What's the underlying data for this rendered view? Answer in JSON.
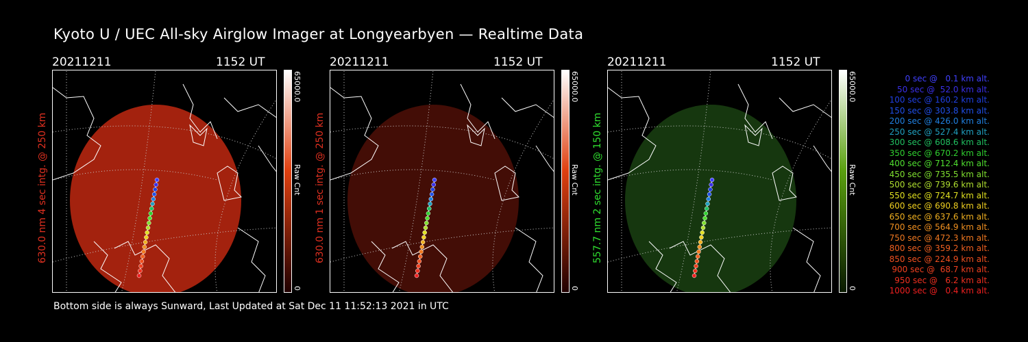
{
  "page": {
    "title": "Kyoto U / UEC All-sky Airglow Imager at Longyearbyen — Realtime Data",
    "footer": "Bottom side is always Sunward, Last Updated at Sat Dec 11 11:52:13 2021 in UTC"
  },
  "panels": [
    {
      "date": "20211211",
      "time": "1152 UT",
      "ylabel": "630.0 nm 4 sec intg. @ 250 km",
      "color": "#e03020",
      "glow": "#c02810",
      "glow_opacity": 0.85,
      "cbar_max": "65000.0",
      "cbar_unit": "Raw Cnt",
      "cbar_min": "0",
      "cbar_top": "#ffffff",
      "cbar_mid": "#e04010",
      "cbar_bot": "#200000"
    },
    {
      "date": "20211211",
      "time": "1152 UT",
      "ylabel": "630.0 nm 1 sec intg. @ 250 km",
      "color": "#e03020",
      "glow": "#5a1208",
      "glow_opacity": 0.75,
      "cbar_max": "65000.0",
      "cbar_unit": "Raw Cnt",
      "cbar_min": "0",
      "cbar_top": "#ffffff",
      "cbar_mid": "#e04010",
      "cbar_bot": "#200000"
    },
    {
      "date": "20211211",
      "time": "1152 UT",
      "ylabel": "557.7 nm 2 sec intg. @ 150 km",
      "color": "#30e030",
      "glow": "#1e4a14",
      "glow_opacity": 0.75,
      "cbar_max": "65000.0",
      "cbar_unit": "Raw Cnt",
      "cbar_min": "0",
      "cbar_top": "#ffffff",
      "cbar_mid": "#5aa010",
      "cbar_bot": "#0a1a00"
    }
  ],
  "legend": [
    {
      "text": " 0 sec @   0.1 km alt.",
      "color": "#4040ff"
    },
    {
      "text": "50 sec @  52.0 km alt.",
      "color": "#3a30e8"
    },
    {
      "text": "100 sec @ 160.2 km alt.",
      "color": "#2040e0"
    },
    {
      "text": "150 sec @ 303.8 km alt.",
      "color": "#2050e8"
    },
    {
      "text": "200 sec @ 426.0 km alt.",
      "color": "#2080e0"
    },
    {
      "text": "250 sec @ 527.4 km alt.",
      "color": "#20a0c0"
    },
    {
      "text": "300 sec @ 608.6 km alt.",
      "color": "#20c060"
    },
    {
      "text": "350 sec @ 670.2 km alt.",
      "color": "#30d030"
    },
    {
      "text": "400 sec @ 712.4 km alt.",
      "color": "#50e030"
    },
    {
      "text": "450 sec @ 735.5 km alt.",
      "color": "#80e030"
    },
    {
      "text": "500 sec @ 739.6 km alt.",
      "color": "#b0e030"
    },
    {
      "text": "550 sec @ 724.7 km alt.",
      "color": "#e0e020"
    },
    {
      "text": "600 sec @ 690.8 km alt.",
      "color": "#f0d020"
    },
    {
      "text": "650 sec @ 637.6 km alt.",
      "color": "#f0b020"
    },
    {
      "text": "700 sec @ 564.9 km alt.",
      "color": "#f09020"
    },
    {
      "text": "750 sec @ 472.3 km alt.",
      "color": "#f07820"
    },
    {
      "text": "800 sec @ 359.2 km alt.",
      "color": "#f06020"
    },
    {
      "text": "850 sec @ 224.9 km alt.",
      "color": "#f05020"
    },
    {
      "text": "900 sec @  68.7 km alt.",
      "color": "#f04020"
    },
    {
      "text": "950 sec @   6.2 km alt.",
      "color": "#f03020"
    },
    {
      "text": "1000 sec @   0.4 km alt.",
      "color": "#f02020"
    }
  ]
}
